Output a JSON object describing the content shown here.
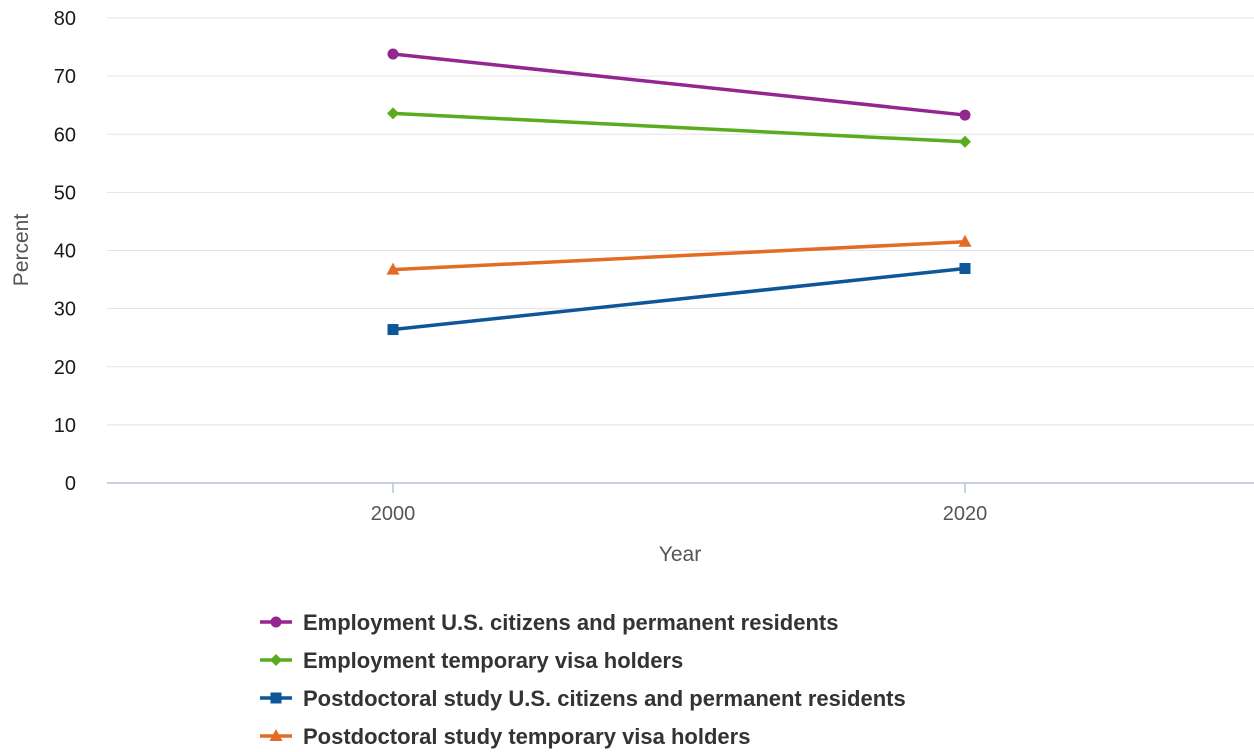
{
  "chart_data": {
    "type": "line",
    "title": "",
    "xlabel": "Year",
    "ylabel": "Percent",
    "x": [
      "2000",
      "2020"
    ],
    "ylim": [
      0,
      80
    ],
    "yticks": [
      0,
      10,
      20,
      30,
      40,
      50,
      60,
      70,
      80
    ],
    "grid": true,
    "legend_position": "bottom",
    "series": [
      {
        "name": "Employment U.S. citizens and permanent residents",
        "values": [
          73.8,
          63.3
        ],
        "color": "#93278f",
        "marker": "circle"
      },
      {
        "name": "Employment temporary visa holders",
        "values": [
          63.6,
          58.7
        ],
        "color": "#5aab1e",
        "marker": "diamond"
      },
      {
        "name": "Postdoctoral study U.S. citizens and permanent residents",
        "values": [
          26.4,
          36.9
        ],
        "color": "#0d5697",
        "marker": "square"
      },
      {
        "name": "Postdoctoral study temporary visa holders",
        "values": [
          36.7,
          41.5
        ],
        "color": "#e36b24",
        "marker": "triangle"
      }
    ]
  }
}
